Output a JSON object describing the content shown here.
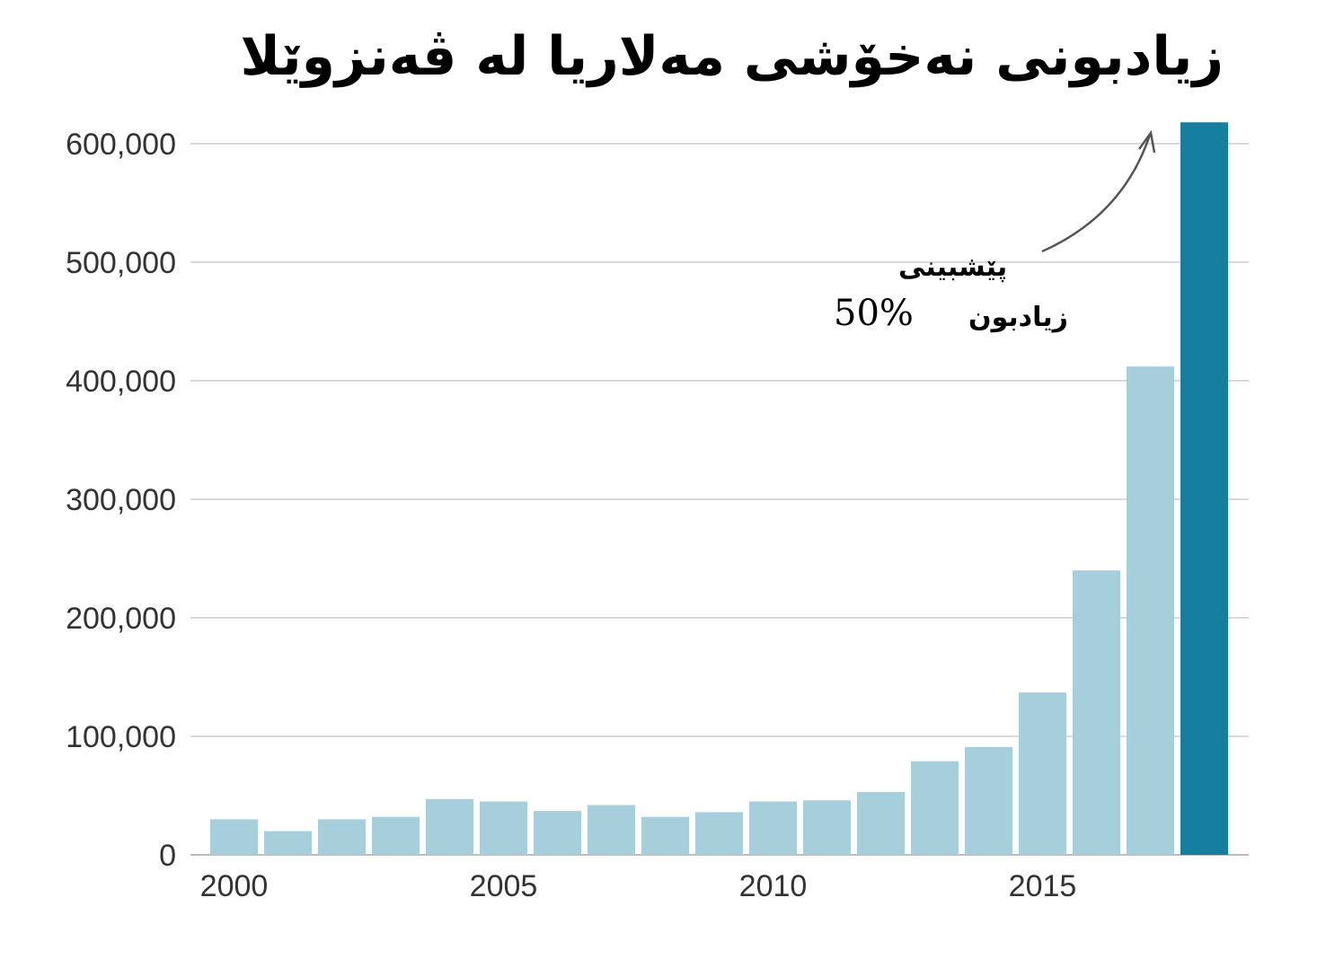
{
  "title": "زیادبونی نەخۆشی مەلاریا لە ڤەنزوێلا",
  "annotation": {
    "line1": "پێشبینی",
    "line2": "زیادبون",
    "value": "50%"
  },
  "colors": {
    "bar": "#a6cedb",
    "highlight": "#167e9f",
    "grid": "#d9d9d9"
  },
  "chart_data": {
    "type": "bar",
    "categories": [
      "2000",
      "2001",
      "2002",
      "2003",
      "2004",
      "2005",
      "2006",
      "2007",
      "2008",
      "2009",
      "2010",
      "2011",
      "2012",
      "2013",
      "2014",
      "2015",
      "2016",
      "2017",
      "2018"
    ],
    "values": [
      30000,
      20000,
      30000,
      32000,
      47000,
      45000,
      37000,
      42000,
      32000,
      36000,
      45000,
      46000,
      53000,
      79000,
      91000,
      137000,
      240000,
      412000,
      618000
    ],
    "highlight_index": 18,
    "xtick_labels": [
      "2000",
      "2005",
      "2010",
      "2015"
    ],
    "xtick_values": [
      "2000",
      "2005",
      "2010",
      "2015"
    ],
    "yticks": [
      0,
      100000,
      200000,
      300000,
      400000,
      500000,
      600000
    ],
    "ytick_labels": [
      "0",
      "100,000",
      "200,000",
      "300,000",
      "400,000",
      "500,000",
      "600,000"
    ],
    "ylim": [
      0,
      620000
    ],
    "grid": true
  }
}
